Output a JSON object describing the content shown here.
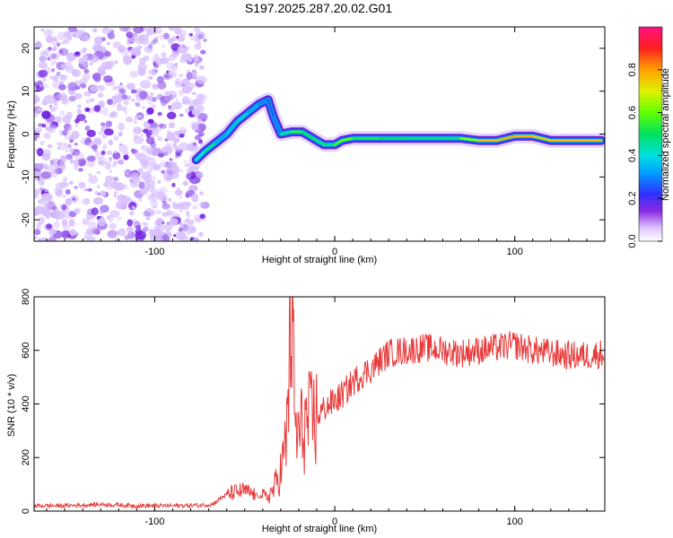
{
  "chart_data": [
    {
      "type": "heatmap",
      "title": "S197.2025.287.20.02.G01",
      "xlabel": "Height of straight line (km)",
      "ylabel": "Frequency (Hz)",
      "xlim": [
        -167,
        150
      ],
      "ylim": [
        -25,
        25
      ],
      "xticks": [
        -100,
        0,
        100
      ],
      "xtick_labels": [
        "-100",
        "0",
        "100"
      ],
      "yticks": [
        -20,
        -10,
        0,
        10,
        20
      ],
      "ytick_labels": [
        "-20",
        "-10",
        "0",
        "10",
        "20"
      ],
      "colorbar": {
        "label": "Normalized spectral amplitude",
        "range": [
          0.0,
          1.0
        ],
        "ticks": [
          0.0,
          0.2,
          0.4,
          0.6,
          0.8
        ],
        "tick_labels": [
          "0.0",
          "0.2",
          "0.4",
          "0.6",
          "0.8"
        ]
      },
      "noise_region_x": [
        -167,
        -72
      ],
      "ridge": [
        {
          "x": -77,
          "y": -6,
          "amp": 0.25
        },
        {
          "x": -72,
          "y": -4,
          "amp": 0.55
        },
        {
          "x": -66,
          "y": -2,
          "amp": 0.35
        },
        {
          "x": -60,
          "y": 0,
          "amp": 0.3
        },
        {
          "x": -54,
          "y": 3,
          "amp": 0.4
        },
        {
          "x": -48,
          "y": 5,
          "amp": 0.35
        },
        {
          "x": -42,
          "y": 7,
          "amp": 0.3
        },
        {
          "x": -37,
          "y": 8,
          "amp": 0.25
        },
        {
          "x": -34,
          "y": 4,
          "amp": 0.25
        },
        {
          "x": -30,
          "y": 0,
          "amp": 0.3
        },
        {
          "x": -24,
          "y": 0.5,
          "amp": 0.6
        },
        {
          "x": -18,
          "y": 0.5,
          "amp": 0.5
        },
        {
          "x": -12,
          "y": -1,
          "amp": 0.5
        },
        {
          "x": -6,
          "y": -2.5,
          "amp": 0.45
        },
        {
          "x": 0,
          "y": -2.5,
          "amp": 0.5
        },
        {
          "x": 4,
          "y": -1.5,
          "amp": 0.65
        },
        {
          "x": 10,
          "y": -1,
          "amp": 0.55
        },
        {
          "x": 25,
          "y": -1,
          "amp": 0.5
        },
        {
          "x": 40,
          "y": -1,
          "amp": 0.5
        },
        {
          "x": 55,
          "y": -1,
          "amp": 0.45
        },
        {
          "x": 70,
          "y": -1,
          "amp": 0.5
        },
        {
          "x": 80,
          "y": -1.5,
          "amp": 0.75
        },
        {
          "x": 90,
          "y": -1.5,
          "amp": 0.8
        },
        {
          "x": 100,
          "y": -0.5,
          "amp": 0.75
        },
        {
          "x": 110,
          "y": -0.5,
          "amp": 0.8
        },
        {
          "x": 120,
          "y": -1.5,
          "amp": 0.7
        },
        {
          "x": 135,
          "y": -1.5,
          "amp": 0.85
        },
        {
          "x": 148,
          "y": -1.5,
          "amp": 0.7
        }
      ]
    },
    {
      "type": "line",
      "title": "",
      "xlabel": "Height of straight line (km)",
      "ylabel": "SNR (10 * v/v)",
      "xlim": [
        -167,
        150
      ],
      "ylim": [
        0,
        800
      ],
      "xticks": [
        -100,
        0,
        100
      ],
      "xtick_labels": [
        "-100",
        "0",
        "100"
      ],
      "yticks": [
        0,
        200,
        400,
        600,
        800
      ],
      "ytick_labels": [
        "0",
        "200",
        "400",
        "600",
        "800"
      ],
      "series": [
        {
          "name": "SNR",
          "color": "#e83a3a",
          "x": [
            -167,
            -150,
            -130,
            -110,
            -90,
            -75,
            -68,
            -62,
            -56,
            -50,
            -44,
            -38,
            -34,
            -30,
            -27,
            -24,
            -22,
            -20,
            -17,
            -14,
            -10,
            -5,
            0,
            5,
            10,
            15,
            20,
            25,
            30,
            40,
            50,
            60,
            70,
            80,
            90,
            100,
            110,
            120,
            130,
            140,
            150
          ],
          "values": [
            20,
            20,
            25,
            20,
            20,
            22,
            25,
            55,
            70,
            75,
            60,
            50,
            80,
            150,
            250,
            800,
            300,
            280,
            320,
            330,
            350,
            390,
            410,
            440,
            480,
            510,
            530,
            560,
            590,
            600,
            610,
            600,
            590,
            600,
            610,
            620,
            600,
            590,
            580,
            580,
            590
          ]
        }
      ]
    }
  ]
}
